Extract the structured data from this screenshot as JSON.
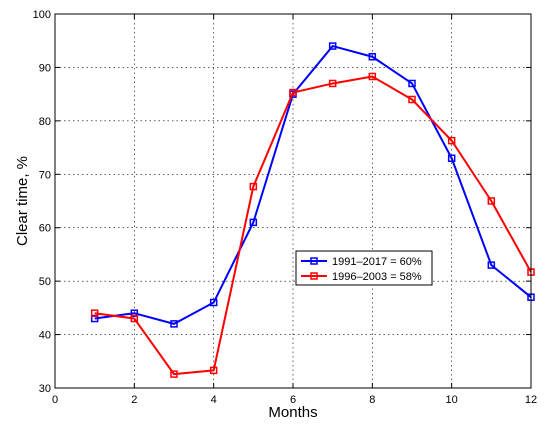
{
  "chart_data": {
    "type": "line",
    "xlabel": "Months",
    "ylabel": "Clear time, %",
    "xlim": [
      0,
      12
    ],
    "ylim": [
      30,
      100
    ],
    "xticks": [
      0,
      2,
      4,
      6,
      8,
      10,
      12
    ],
    "yticks": [
      30,
      40,
      50,
      60,
      70,
      80,
      90,
      100
    ],
    "grid": true,
    "legend_position": "center-right",
    "series": [
      {
        "name": "1991–2017 = 60%",
        "color": "#0000ff",
        "marker": "square",
        "x": [
          1,
          2,
          3,
          4,
          5,
          6,
          7,
          8,
          9,
          10,
          11,
          12
        ],
        "y": [
          43,
          44,
          42,
          46,
          61,
          85,
          94,
          92,
          87,
          73,
          53,
          47
        ]
      },
      {
        "name": "1996–2003 = 58%",
        "color": "#ff0000",
        "marker": "square",
        "x": [
          1,
          2,
          3,
          4,
          5,
          6,
          7,
          8,
          9,
          10,
          11,
          12
        ],
        "y": [
          44,
          43,
          32.6,
          33.3,
          67.7,
          85.3,
          87,
          88.3,
          84,
          76.3,
          65,
          51.7
        ]
      }
    ]
  }
}
